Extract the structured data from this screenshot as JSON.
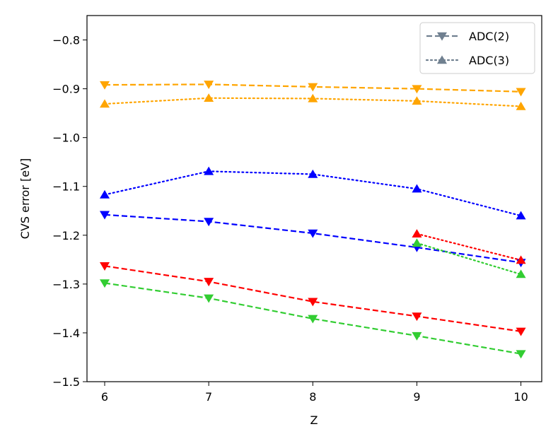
{
  "chart_data": {
    "type": "line",
    "title": "",
    "xlabel": "Z",
    "ylabel": "CVS error [eV]",
    "xlim": [
      5.83,
      10.2
    ],
    "ylim": [
      -1.5,
      -0.75
    ],
    "xticks": [
      6,
      7,
      8,
      9,
      10
    ],
    "yticks": [
      -1.5,
      -1.4,
      -1.3,
      -1.2,
      -1.1,
      -1.0,
      -0.9,
      -0.8
    ],
    "ytick_labels": [
      "−1.5",
      "−1.4",
      "−1.3",
      "−1.2",
      "−1.1",
      "−1.0",
      "−0.9",
      "−0.8"
    ],
    "xtick_labels": [
      "6",
      "7",
      "8",
      "9",
      "10"
    ],
    "legend": {
      "position": "top-right",
      "entries": [
        {
          "label": "ADC(2)",
          "linestyle": "dashed",
          "marker": "triangle-down",
          "color": "#708090"
        },
        {
          "label": "ADC(3)",
          "linestyle": "dotted",
          "marker": "triangle-up",
          "color": "#708090"
        }
      ]
    },
    "series": [
      {
        "name": "orange ADC(2)",
        "color": "#FFA500",
        "method": "ADC(2)",
        "x": [
          6,
          7,
          8,
          9,
          10
        ],
        "y": [
          -0.892,
          -0.891,
          -0.896,
          -0.9,
          -0.906
        ]
      },
      {
        "name": "orange ADC(3)",
        "color": "#FFA500",
        "method": "ADC(3)",
        "x": [
          6,
          7,
          8,
          9,
          10
        ],
        "y": [
          -0.931,
          -0.919,
          -0.92,
          -0.925,
          -0.936
        ]
      },
      {
        "name": "blue ADC(3)",
        "color": "#0000FF",
        "method": "ADC(3)",
        "x": [
          6,
          7,
          8,
          9,
          10
        ],
        "y": [
          -1.117,
          -1.069,
          -1.075,
          -1.105,
          -1.16
        ]
      },
      {
        "name": "blue ADC(2)",
        "color": "#0000FF",
        "method": "ADC(2)",
        "x": [
          6,
          7,
          8,
          9,
          10
        ],
        "y": [
          -1.158,
          -1.172,
          -1.196,
          -1.225,
          -1.256
        ]
      },
      {
        "name": "red ADC(2)",
        "color": "#FF0000",
        "method": "ADC(2)",
        "x": [
          6,
          7,
          8,
          9,
          10
        ],
        "y": [
          -1.263,
          -1.295,
          -1.336,
          -1.366,
          -1.397
        ]
      },
      {
        "name": "red ADC(3)",
        "color": "#FF0000",
        "method": "ADC(3)",
        "x": [
          9,
          10
        ],
        "y": [
          -1.197,
          -1.251
        ]
      },
      {
        "name": "green ADC(2)",
        "color": "#32CD32",
        "method": "ADC(2)",
        "x": [
          6,
          7,
          8,
          9,
          10
        ],
        "y": [
          -1.298,
          -1.329,
          -1.371,
          -1.406,
          -1.443
        ]
      },
      {
        "name": "green ADC(3)",
        "color": "#32CD32",
        "method": "ADC(3)",
        "x": [
          9,
          10
        ],
        "y": [
          -1.216,
          -1.28
        ]
      }
    ]
  }
}
